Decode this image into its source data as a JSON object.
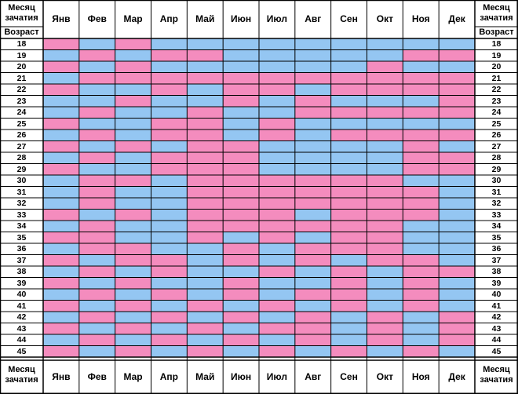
{
  "labels": {
    "corner_top_line1": "Месяц",
    "corner_top_line2": "зачатия",
    "age_label": "Возраст",
    "corner_bottom_line1": "Месяц",
    "corner_bottom_line2": "зачатия"
  },
  "months": [
    "Янв",
    "Фев",
    "Мар",
    "Апр",
    "Май",
    "Июн",
    "Июл",
    "Авг",
    "Сен",
    "Окт",
    "Ноя",
    "Дек"
  ],
  "ages": [
    18,
    19,
    20,
    21,
    22,
    23,
    24,
    25,
    26,
    27,
    28,
    29,
    30,
    31,
    32,
    33,
    34,
    35,
    36,
    37,
    38,
    39,
    40,
    41,
    42,
    43,
    44,
    45
  ],
  "colors": {
    "girl": "#f48cbe",
    "boy": "#94c6f2",
    "grid": "#000000"
  },
  "chart_data": {
    "type": "heatmap",
    "x": [
      "Янв",
      "Фев",
      "Мар",
      "Апр",
      "Май",
      "Июн",
      "Июл",
      "Авг",
      "Сен",
      "Окт",
      "Ноя",
      "Дек"
    ],
    "y": [
      18,
      19,
      20,
      21,
      22,
      23,
      24,
      25,
      26,
      27,
      28,
      29,
      30,
      31,
      32,
      33,
      34,
      35,
      36,
      37,
      38,
      39,
      40,
      41,
      42,
      43,
      44,
      45
    ],
    "values_legend": {
      "G": "pink",
      "B": "blue"
    },
    "values": [
      [
        "G",
        "B",
        "G",
        "B",
        "B",
        "B",
        "B",
        "B",
        "B",
        "B",
        "B",
        "B"
      ],
      [
        "B",
        "G",
        "B",
        "G",
        "G",
        "B",
        "B",
        "B",
        "B",
        "B",
        "G",
        "G"
      ],
      [
        "G",
        "B",
        "G",
        "B",
        "B",
        "B",
        "B",
        "B",
        "B",
        "G",
        "B",
        "B"
      ],
      [
        "B",
        "G",
        "G",
        "G",
        "G",
        "G",
        "G",
        "G",
        "G",
        "G",
        "G",
        "G"
      ],
      [
        "G",
        "B",
        "B",
        "G",
        "B",
        "G",
        "G",
        "B",
        "G",
        "G",
        "G",
        "G"
      ],
      [
        "B",
        "B",
        "G",
        "B",
        "B",
        "G",
        "B",
        "G",
        "B",
        "B",
        "B",
        "G"
      ],
      [
        "B",
        "G",
        "B",
        "B",
        "G",
        "B",
        "B",
        "G",
        "G",
        "G",
        "G",
        "G"
      ],
      [
        "G",
        "B",
        "B",
        "G",
        "G",
        "B",
        "G",
        "B",
        "B",
        "B",
        "B",
        "B"
      ],
      [
        "B",
        "G",
        "B",
        "G",
        "G",
        "B",
        "G",
        "B",
        "G",
        "G",
        "G",
        "G"
      ],
      [
        "G",
        "B",
        "G",
        "B",
        "G",
        "G",
        "B",
        "B",
        "B",
        "B",
        "G",
        "B"
      ],
      [
        "B",
        "G",
        "B",
        "G",
        "G",
        "G",
        "B",
        "B",
        "B",
        "B",
        "G",
        "G"
      ],
      [
        "G",
        "B",
        "B",
        "G",
        "G",
        "G",
        "B",
        "B",
        "B",
        "B",
        "G",
        "G"
      ],
      [
        "B",
        "G",
        "G",
        "B",
        "G",
        "G",
        "G",
        "G",
        "G",
        "G",
        "B",
        "B"
      ],
      [
        "B",
        "G",
        "B",
        "B",
        "G",
        "G",
        "G",
        "G",
        "G",
        "G",
        "G",
        "B"
      ],
      [
        "B",
        "G",
        "B",
        "B",
        "G",
        "G",
        "G",
        "G",
        "G",
        "G",
        "G",
        "B"
      ],
      [
        "G",
        "B",
        "G",
        "B",
        "G",
        "G",
        "G",
        "B",
        "G",
        "G",
        "G",
        "B"
      ],
      [
        "B",
        "G",
        "B",
        "B",
        "G",
        "G",
        "G",
        "G",
        "G",
        "G",
        "B",
        "B"
      ],
      [
        "G",
        "G",
        "B",
        "B",
        "G",
        "B",
        "G",
        "B",
        "G",
        "G",
        "B",
        "B"
      ],
      [
        "B",
        "G",
        "G",
        "B",
        "B",
        "G",
        "B",
        "G",
        "G",
        "G",
        "B",
        "B"
      ],
      [
        "G",
        "B",
        "G",
        "G",
        "B",
        "G",
        "B",
        "G",
        "B",
        "G",
        "G",
        "B"
      ],
      [
        "B",
        "G",
        "B",
        "G",
        "B",
        "B",
        "G",
        "B",
        "G",
        "B",
        "G",
        "G"
      ],
      [
        "G",
        "B",
        "G",
        "B",
        "B",
        "G",
        "B",
        "B",
        "G",
        "B",
        "G",
        "B"
      ],
      [
        "B",
        "G",
        "B",
        "G",
        "B",
        "G",
        "B",
        "G",
        "G",
        "B",
        "G",
        "B"
      ],
      [
        "G",
        "B",
        "G",
        "B",
        "G",
        "B",
        "G",
        "B",
        "G",
        "B",
        "G",
        "B"
      ],
      [
        "B",
        "G",
        "B",
        "G",
        "B",
        "G",
        "B",
        "G",
        "B",
        "G",
        "B",
        "G"
      ],
      [
        "G",
        "B",
        "G",
        "B",
        "G",
        "B",
        "G",
        "G",
        "B",
        "G",
        "B",
        "G"
      ],
      [
        "B",
        "G",
        "B",
        "G",
        "B",
        "G",
        "B",
        "G",
        "B",
        "G",
        "B",
        "G"
      ],
      [
        "G",
        "B",
        "G",
        "B",
        "G",
        "B",
        "G",
        "B",
        "G",
        "B",
        "G",
        "B"
      ]
    ]
  }
}
